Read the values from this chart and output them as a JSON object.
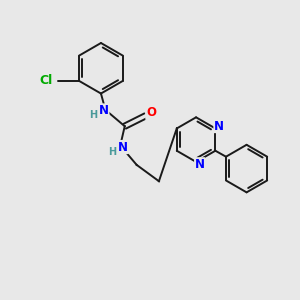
{
  "background_color": "#e8e8e8",
  "bond_color": "#1a1a1a",
  "atom_colors": {
    "N": "#0000ff",
    "O": "#ff0000",
    "Cl": "#00aa00",
    "H": "#4a9a9a",
    "C": "#1a1a1a"
  },
  "bond_width": 1.4,
  "font_size_atom": 8.5
}
